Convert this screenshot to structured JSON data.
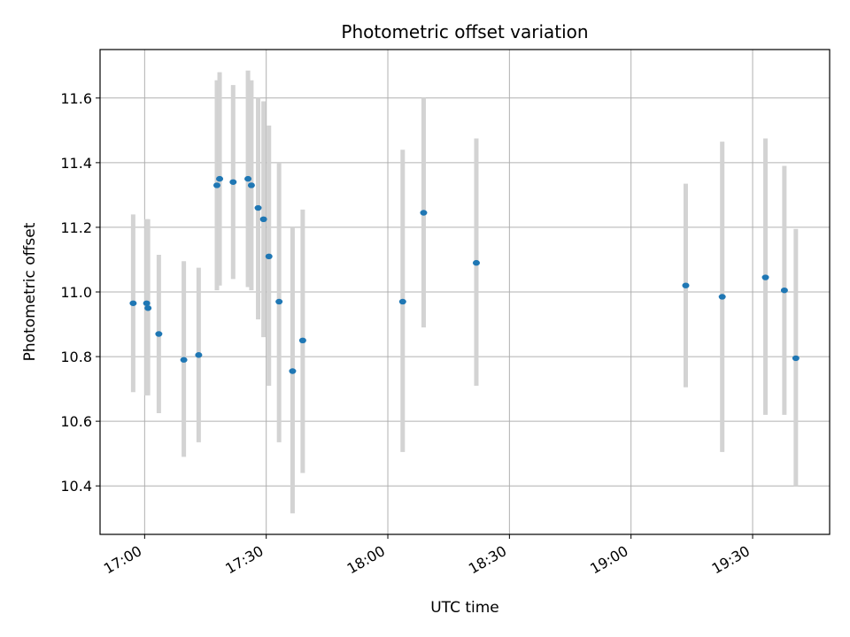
{
  "chart_data": {
    "type": "scatter",
    "title": "Photometric offset variation",
    "xlabel": "UTC time",
    "ylabel": "Photometric offset",
    "x_unit": "time HH:MM",
    "xlim": [
      "16:49",
      "19:49"
    ],
    "ylim": [
      10.25,
      11.75
    ],
    "x_ticks": [
      "17:00",
      "17:30",
      "18:00",
      "18:30",
      "19:00",
      "19:30"
    ],
    "y_ticks": [
      "10.4",
      "10.6",
      "10.8",
      "11.0",
      "11.2",
      "11.4",
      "11.6"
    ],
    "grid": true,
    "point_color": "#1f77b4",
    "errorbar_color": "#d3d3d3",
    "points": [
      {
        "x": "16:57:10",
        "y": 10.965,
        "low": 10.69,
        "high": 11.24
      },
      {
        "x": "17:00:30",
        "y": 10.965,
        "low": 10.68,
        "high": 11.225
      },
      {
        "x": "17:00:50",
        "y": 10.95,
        "low": 10.68,
        "high": 11.225
      },
      {
        "x": "17:03:30",
        "y": 10.87,
        "low": 10.625,
        "high": 11.115
      },
      {
        "x": "17:09:40",
        "y": 10.79,
        "low": 10.49,
        "high": 11.095
      },
      {
        "x": "17:13:20",
        "y": 10.805,
        "low": 10.535,
        "high": 11.075
      },
      {
        "x": "17:17:50",
        "y": 11.33,
        "low": 11.005,
        "high": 11.655
      },
      {
        "x": "17:18:30",
        "y": 11.35,
        "low": 11.02,
        "high": 11.68
      },
      {
        "x": "17:21:50",
        "y": 11.34,
        "low": 11.04,
        "high": 11.64
      },
      {
        "x": "17:25:30",
        "y": 11.35,
        "low": 11.015,
        "high": 11.685
      },
      {
        "x": "17:26:20",
        "y": 11.33,
        "low": 11.005,
        "high": 11.655
      },
      {
        "x": "17:28:00",
        "y": 11.26,
        "low": 10.915,
        "high": 11.6
      },
      {
        "x": "17:29:20",
        "y": 11.225,
        "low": 10.86,
        "high": 11.59
      },
      {
        "x": "17:30:40",
        "y": 11.11,
        "low": 10.71,
        "high": 11.515
      },
      {
        "x": "17:33:10",
        "y": 10.97,
        "low": 10.535,
        "high": 11.4
      },
      {
        "x": "17:36:30",
        "y": 10.755,
        "low": 10.315,
        "high": 11.2
      },
      {
        "x": "17:39:00",
        "y": 10.85,
        "low": 10.44,
        "high": 11.255
      },
      {
        "x": "18:03:40",
        "y": 10.97,
        "low": 10.505,
        "high": 11.44
      },
      {
        "x": "18:08:50",
        "y": 11.245,
        "low": 10.89,
        "high": 11.6
      },
      {
        "x": "18:21:50",
        "y": 11.09,
        "low": 10.71,
        "high": 11.475
      },
      {
        "x": "19:13:30",
        "y": 11.02,
        "low": 10.705,
        "high": 11.335
      },
      {
        "x": "19:22:30",
        "y": 10.985,
        "low": 10.505,
        "high": 11.465
      },
      {
        "x": "19:33:10",
        "y": 11.045,
        "low": 10.62,
        "high": 11.475
      },
      {
        "x": "19:37:50",
        "y": 11.005,
        "low": 10.62,
        "high": 11.39
      },
      {
        "x": "19:40:40",
        "y": 10.795,
        "low": 10.4,
        "high": 11.195
      }
    ]
  }
}
